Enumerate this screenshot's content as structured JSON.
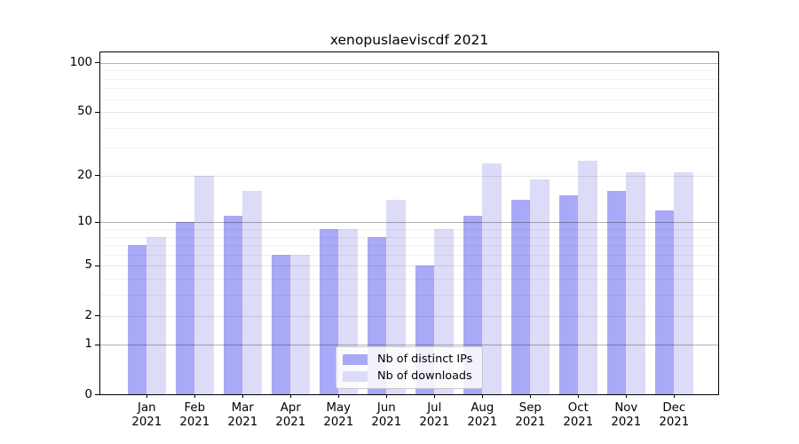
{
  "chart_data": {
    "type": "bar",
    "title": "xenopuslaeviscdf 2021",
    "categories": [
      "Jan",
      "Feb",
      "Mar",
      "Apr",
      "May",
      "Jun",
      "Jul",
      "Aug",
      "Sep",
      "Oct",
      "Nov",
      "Dec"
    ],
    "year": "2021",
    "series": [
      {
        "name": "Nb of distinct IPs",
        "color": "#a9a9f7",
        "values": [
          7,
          10,
          11,
          6,
          9,
          8,
          5,
          11,
          14,
          15,
          16,
          12
        ]
      },
      {
        "name": "Nb of downloads",
        "color": "#dcdcf8",
        "values": [
          8,
          20,
          16,
          6,
          9,
          14,
          9,
          24,
          19,
          25,
          21,
          21
        ]
      }
    ],
    "yscale": "log1p",
    "yticks": [
      0,
      1,
      2,
      5,
      10,
      20,
      50,
      100
    ],
    "ylim": [
      0,
      116
    ],
    "xlabel": "",
    "ylabel": "",
    "grid": "horizontal",
    "legend_position": "lower center"
  }
}
